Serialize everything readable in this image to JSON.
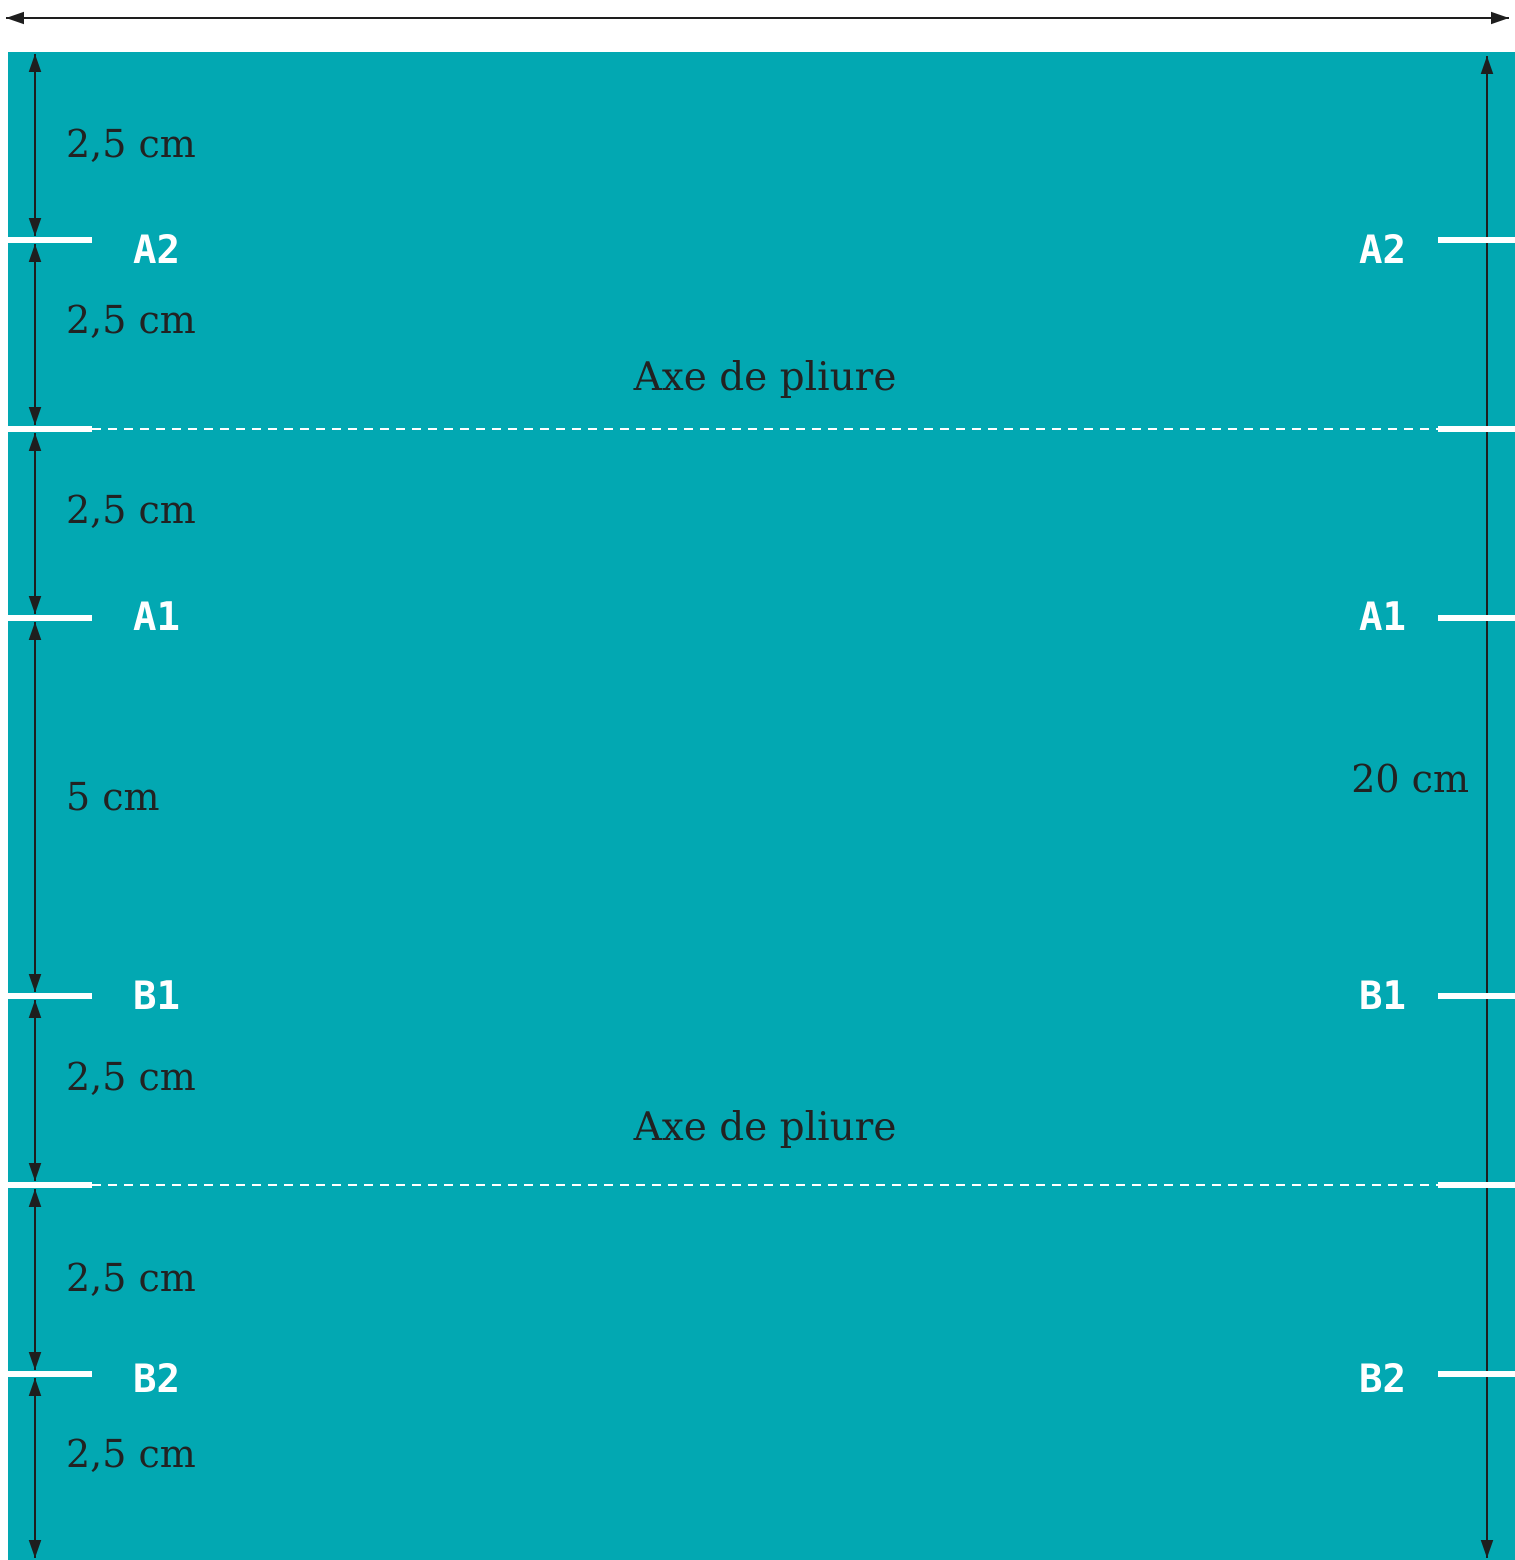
{
  "colors": {
    "fabric": "#02a8b2",
    "background": "#ffffff",
    "marks": "#ffffff",
    "dimension_lines": "#1e1e1e",
    "text": "#222222"
  },
  "fold_axis_label": "Axe de pliure",
  "markers": {
    "a2": "A2",
    "a1": "A1",
    "b1": "B1",
    "b2": "B2"
  },
  "measurements": {
    "top_margin": "2,5 cm",
    "a2_to_fold": "2,5 cm",
    "fold_to_a1": "2,5 cm",
    "a1_to_b1": "5 cm",
    "b1_to_fold": "2,5 cm",
    "fold_to_b2": "2,5 cm",
    "bottom_margin": "2,5 cm",
    "total_height": "20 cm"
  }
}
